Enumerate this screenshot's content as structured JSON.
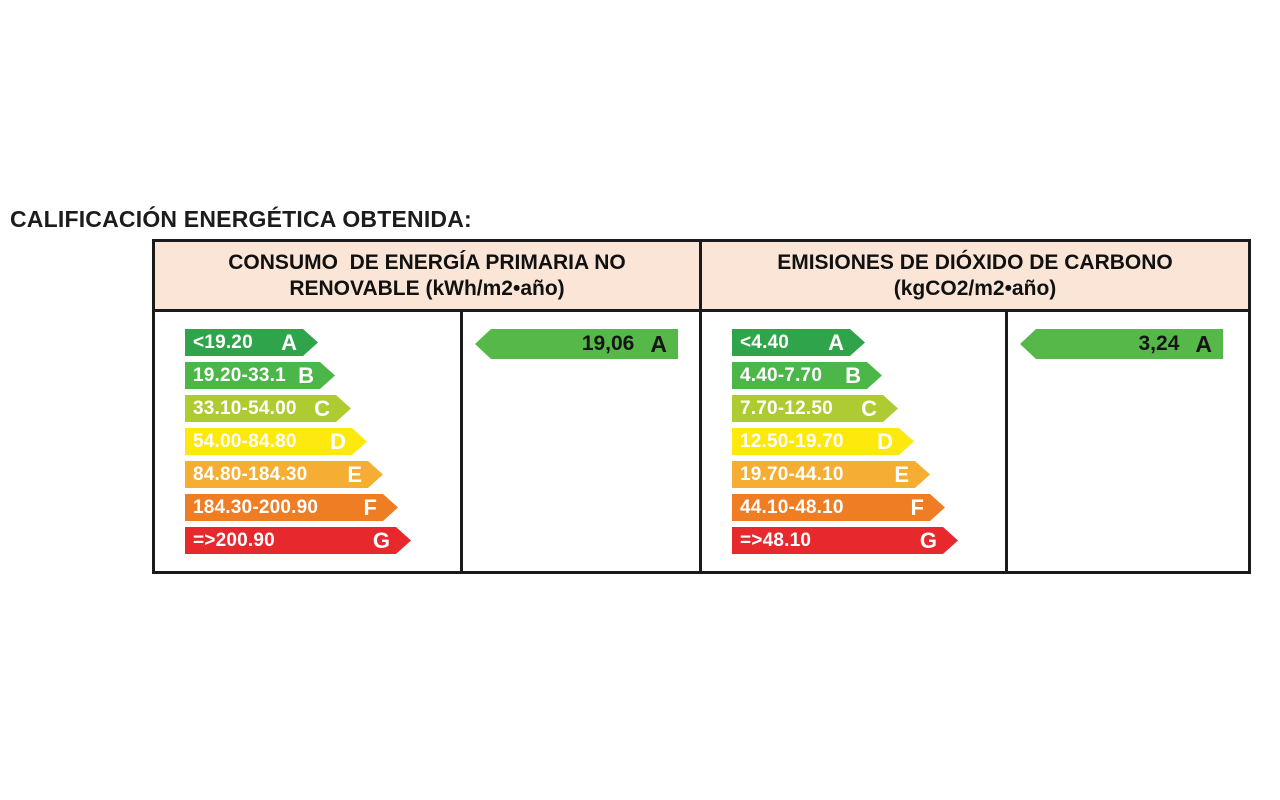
{
  "title": "CALIFICACIÓN ENERGÉTICA OBTENIDA:",
  "colors": {
    "A": "#2FA44A",
    "B": "#4CB748",
    "C": "#AECB31",
    "D": "#FDE90D",
    "E": "#F5AD33",
    "F": "#EE7D23",
    "G": "#E7282D",
    "result_arrow": "#56B848",
    "header_bg": "#FAE5D6",
    "border": "#1B1B1B"
  },
  "panels": [
    {
      "id": "consumo",
      "header_line1": "CONSUMO  DE ENERGÍA PRIMARIA NO",
      "header_line2": "RENOVABLE (kWh/m2•año)",
      "scale": [
        {
          "range": "<19.20",
          "letter": "A"
        },
        {
          "range": "19.20-33.1",
          "letter": "B"
        },
        {
          "range": "33.10-54.00",
          "letter": "C"
        },
        {
          "range": "54.00-84.80",
          "letter": "D"
        },
        {
          "range": "84.80-184.30",
          "letter": "E"
        },
        {
          "range": "184.30-200.90",
          "letter": "F"
        },
        {
          "range": "=>200.90",
          "letter": "G"
        }
      ],
      "result": {
        "value": "19,06",
        "letter": "A"
      }
    },
    {
      "id": "emisiones",
      "header_line1": "EMISIONES DE DIÓXIDO DE CARBONO",
      "header_line2": "(kgCO2/m2•año)",
      "scale": [
        {
          "range": "<4.40",
          "letter": "A"
        },
        {
          "range": "4.40-7.70",
          "letter": "B"
        },
        {
          "range": "7.70-12.50",
          "letter": "C"
        },
        {
          "range": "12.50-19.70",
          "letter": "D"
        },
        {
          "range": "19.70-44.10",
          "letter": "E"
        },
        {
          "range": "44.10-48.10",
          "letter": "F"
        },
        {
          "range": "=>48.10",
          "letter": "G"
        }
      ],
      "result": {
        "value": "3,24",
        "letter": "A"
      }
    }
  ],
  "chart_data": [
    {
      "type": "table",
      "title": "CONSUMO  DE ENERGÍA PRIMARIA NO RENOVABLE (kWh/m2•año)",
      "categories": [
        "A",
        "B",
        "C",
        "D",
        "E",
        "F",
        "G"
      ],
      "ranges": [
        "<19.20",
        "19.20-33.1",
        "33.10-54.00",
        "54.00-84.80",
        "84.80-184.30",
        "184.30-200.90",
        "=>200.90"
      ],
      "obtained_value": "19,06",
      "obtained_class": "A"
    },
    {
      "type": "table",
      "title": "EMISIONES DE DIÓXIDO DE CARBONO (kgCO2/m2•año)",
      "categories": [
        "A",
        "B",
        "C",
        "D",
        "E",
        "F",
        "G"
      ],
      "ranges": [
        "<4.40",
        "4.40-7.70",
        "7.70-12.50",
        "12.50-19.70",
        "19.70-44.10",
        "44.10-48.10",
        "=>48.10"
      ],
      "obtained_value": "3,24",
      "obtained_class": "A"
    }
  ]
}
